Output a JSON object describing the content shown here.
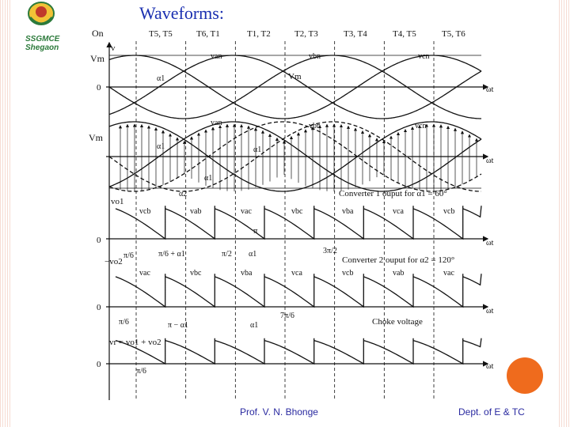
{
  "slide": {
    "title": "Waveforms:",
    "author": "Prof. V. N. Bhonge",
    "dept": "Dept. of E & TC",
    "logo_text": [
      "SSGMCE",
      "Shegaon"
    ]
  },
  "colors": {
    "title": "#1a2fb0",
    "accent": "#ef6b1d",
    "footer": "#2a2aa0",
    "logo": "#2c7a3b"
  },
  "diagram": {
    "on_label": "On",
    "thyristor_pairs": [
      "T5, T5",
      "T6, T1",
      "T1, T2",
      "T2, T3",
      "T3, T4",
      "T4, T5",
      "T5, T6"
    ],
    "panel1": {
      "vm": "Vm",
      "v": "v",
      "zero": "0",
      "wt": "ωt",
      "alpha": "α1",
      "van": "van",
      "vbn": "vbn",
      "vcn": "vcn",
      "vm_arrow": "Vm"
    },
    "panel2": {
      "vm": "Vm",
      "wt": "ωt",
      "van": "van",
      "vbn": "vbn",
      "vcn": "vcn",
      "alpha_a": "α1",
      "alpha_b": "α1",
      "alpha_c": "α1",
      "alpha2": "α2",
      "caption": "Converter 1 ouput for α1 = 60°"
    },
    "panel3": {
      "vo": "vo1",
      "zero": "0",
      "wt": "ωt",
      "labels": [
        "vcb",
        "vab",
        "vac",
        "vbc",
        "vba",
        "vca",
        "vcb"
      ],
      "pi": "π",
      "pi6": "π/6",
      "pi6a": "π/6 + α1",
      "pi2": "π/2",
      "a1": "α1",
      "neg_vo2": "−vo2"
    },
    "panel4": {
      "zero": "0",
      "wt": "ωt",
      "labels": [
        "vac",
        "vbc",
        "vba",
        "vca",
        "vcb",
        "vab",
        "vac"
      ],
      "pi6": "π/6",
      "pi_a": "π − α1",
      "a1": "α1",
      "seven_pi": "7π/6",
      "three_pi": "3π/2",
      "caption": "Converter 2 ouput for α2 = 120°",
      "choke": "Choke voltage"
    },
    "panel5": {
      "vr": "vr = vo1 + vo2",
      "zero": "0",
      "wt": "ωt",
      "pi6": "π/6"
    }
  }
}
